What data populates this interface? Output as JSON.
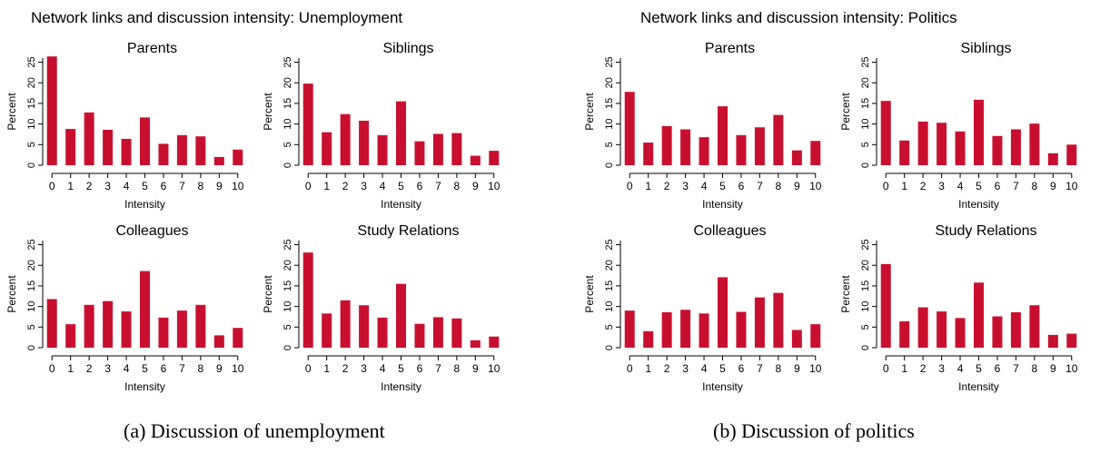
{
  "figure": {
    "caption_a": "(a) Discussion of unemployment",
    "caption_b": "(b) Discussion of politics"
  },
  "style": {
    "bar_color": "#c8102e",
    "axis_color": "#000000"
  },
  "chart_data": [
    {
      "group_title": "Network links and discussion intensity: Unemployment",
      "panels": [
        {
          "type": "bar",
          "title": "Parents",
          "xlabel": "Intensity",
          "ylabel": "Percent",
          "categories": [
            "0",
            "1",
            "2",
            "3",
            "4",
            "5",
            "6",
            "7",
            "8",
            "9",
            "10"
          ],
          "values": [
            26.4,
            8.8,
            12.8,
            8.6,
            6.4,
            11.6,
            5.2,
            7.3,
            7.0,
            2.0,
            3.8
          ],
          "ylim": [
            0,
            26
          ],
          "yticks": [
            "0",
            "5",
            "10",
            "15",
            "20",
            "25"
          ]
        },
        {
          "type": "bar",
          "title": "Siblings",
          "xlabel": "Intensity",
          "ylabel": "Percent",
          "categories": [
            "0",
            "1",
            "2",
            "3",
            "4",
            "5",
            "6",
            "7",
            "8",
            "9",
            "10"
          ],
          "values": [
            19.8,
            8.0,
            12.4,
            10.8,
            7.3,
            15.5,
            5.8,
            7.6,
            7.8,
            2.3,
            3.5
          ],
          "ylim": [
            0,
            26
          ],
          "yticks": [
            "0",
            "5",
            "10",
            "15",
            "20",
            "25"
          ]
        },
        {
          "type": "bar",
          "title": "Colleagues",
          "xlabel": "Intensity",
          "ylabel": "Percent",
          "categories": [
            "0",
            "1",
            "2",
            "3",
            "4",
            "5",
            "6",
            "7",
            "8",
            "9",
            "10"
          ],
          "values": [
            11.8,
            5.7,
            10.4,
            11.3,
            8.8,
            18.6,
            7.3,
            9.0,
            10.4,
            3.0,
            4.8
          ],
          "ylim": [
            0,
            26
          ],
          "yticks": [
            "0",
            "5",
            "10",
            "15",
            "20",
            "25"
          ]
        },
        {
          "type": "bar",
          "title": "Study Relations",
          "xlabel": "Intensity",
          "ylabel": "Percent",
          "categories": [
            "0",
            "1",
            "2",
            "3",
            "4",
            "5",
            "6",
            "7",
            "8",
            "9",
            "10"
          ],
          "values": [
            23.1,
            8.3,
            11.5,
            10.3,
            7.3,
            15.5,
            5.8,
            7.4,
            7.1,
            1.8,
            2.7
          ],
          "ylim": [
            0,
            26
          ],
          "yticks": [
            "0",
            "5",
            "10",
            "15",
            "20",
            "25"
          ]
        }
      ]
    },
    {
      "group_title": "Network links and discussion intensity: Politics",
      "panels": [
        {
          "type": "bar",
          "title": "Parents",
          "xlabel": "Intensity",
          "ylabel": "Percent",
          "categories": [
            "0",
            "1",
            "2",
            "3",
            "4",
            "5",
            "6",
            "7",
            "8",
            "9",
            "10"
          ],
          "values": [
            17.8,
            5.5,
            9.5,
            8.7,
            6.8,
            14.3,
            7.3,
            9.2,
            12.2,
            3.6,
            5.9
          ],
          "ylim": [
            0,
            26
          ],
          "yticks": [
            "0",
            "5",
            "10",
            "15",
            "20",
            "25"
          ]
        },
        {
          "type": "bar",
          "title": "Siblings",
          "xlabel": "Intensity",
          "ylabel": "Percent",
          "categories": [
            "0",
            "1",
            "2",
            "3",
            "4",
            "5",
            "6",
            "7",
            "8",
            "9",
            "10"
          ],
          "values": [
            15.6,
            6.0,
            10.6,
            10.3,
            8.2,
            15.9,
            7.1,
            8.7,
            10.1,
            2.9,
            5.0
          ],
          "ylim": [
            0,
            26
          ],
          "yticks": [
            "0",
            "5",
            "10",
            "15",
            "20",
            "25"
          ]
        },
        {
          "type": "bar",
          "title": "Colleagues",
          "xlabel": "Intensity",
          "ylabel": "Percent",
          "categories": [
            "0",
            "1",
            "2",
            "3",
            "4",
            "5",
            "6",
            "7",
            "8",
            "9",
            "10"
          ],
          "values": [
            9.0,
            4.0,
            8.6,
            9.2,
            8.3,
            17.1,
            8.7,
            12.2,
            13.3,
            4.3,
            5.7
          ],
          "ylim": [
            0,
            26
          ],
          "yticks": [
            "0",
            "5",
            "10",
            "15",
            "20",
            "25"
          ]
        },
        {
          "type": "bar",
          "title": "Study Relations",
          "xlabel": "Intensity",
          "ylabel": "Percent",
          "categories": [
            "0",
            "1",
            "2",
            "3",
            "4",
            "5",
            "6",
            "7",
            "8",
            "9",
            "10"
          ],
          "values": [
            20.3,
            6.4,
            9.8,
            8.8,
            7.2,
            15.8,
            7.6,
            8.6,
            10.3,
            3.1,
            3.4
          ],
          "ylim": [
            0,
            26
          ],
          "yticks": [
            "0",
            "5",
            "10",
            "15",
            "20",
            "25"
          ]
        }
      ]
    }
  ]
}
